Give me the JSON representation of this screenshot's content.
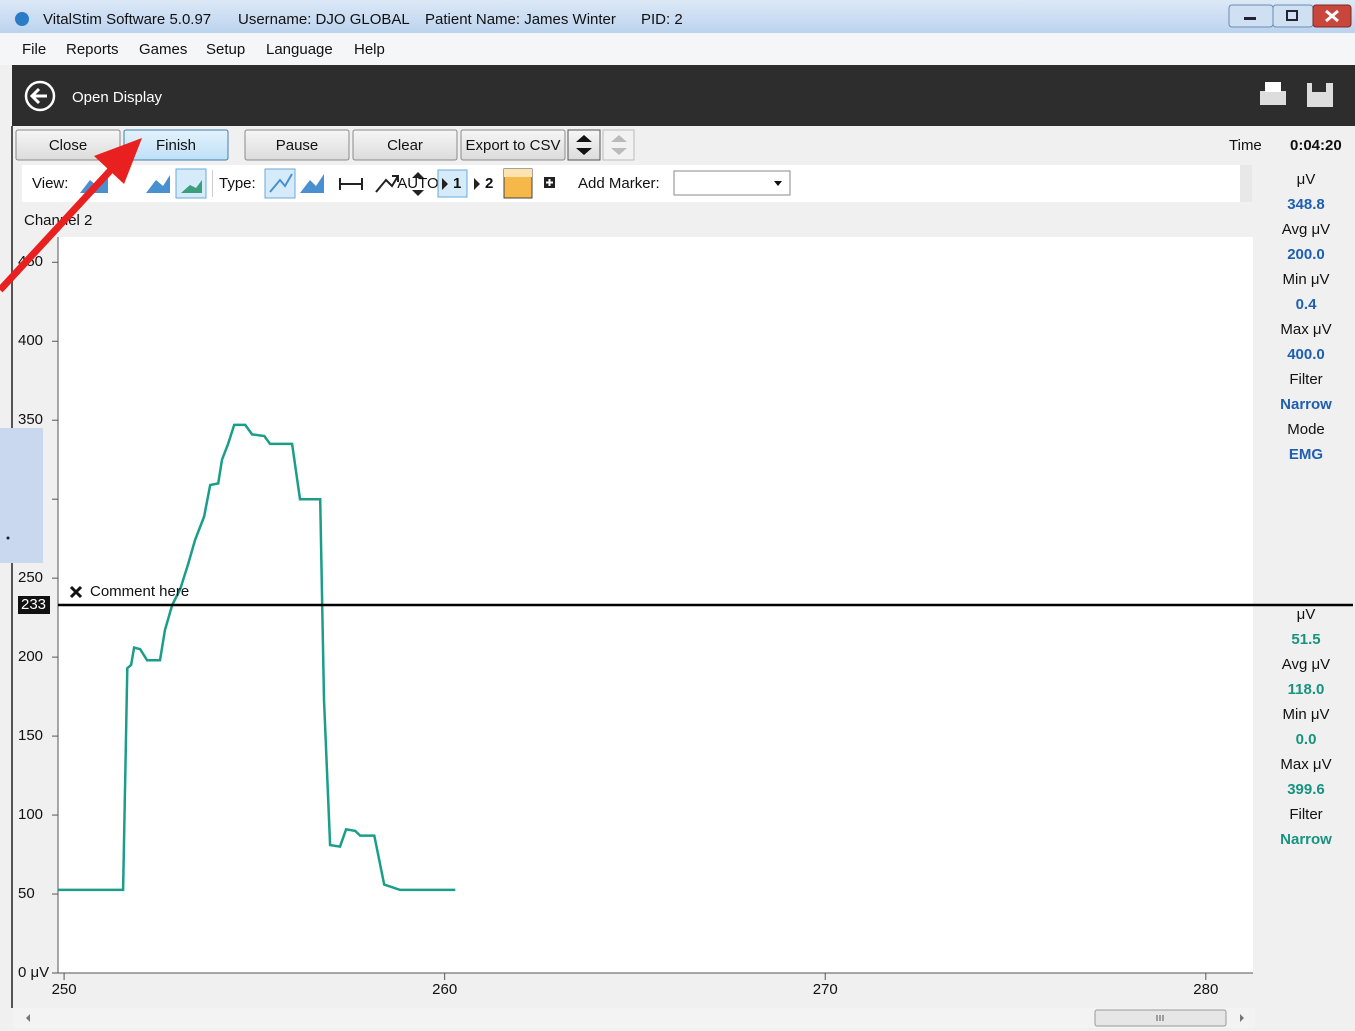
{
  "window": {
    "title": "VitalStim Software 5.0.97",
    "username": "Username: DJO GLOBAL",
    "patient": "Patient Name: James Winter",
    "pid": "PID: 2"
  },
  "menu": [
    "File",
    "Reports",
    "Games",
    "Setup",
    "Language",
    "Help"
  ],
  "header": {
    "title": "Open Display"
  },
  "buttons": [
    "Close",
    "Finish",
    "Pause",
    "Clear",
    "Export to CSV"
  ],
  "time": {
    "label": "Time",
    "value": "0:04:20"
  },
  "toolbar": {
    "view": "View:",
    "type": "Type:",
    "auto": "AUTO",
    "channel_1": "1",
    "channel_2": "2",
    "add_marker": "Add Marker:"
  },
  "stats": [
    {
      "color": "#1f5fb0",
      "items": [
        {
          "label": "μV",
          "value": "348.8"
        },
        {
          "label": "Avg μV",
          "value": "200.0"
        },
        {
          "label": "Min μV",
          "value": "0.4"
        },
        {
          "label": "Max μV",
          "value": "400.0"
        },
        {
          "label": "Filter",
          "value": "Narrow"
        },
        {
          "label": "Mode",
          "value": "EMG"
        }
      ]
    },
    {
      "color": "#17937f",
      "items": [
        {
          "label": "μV",
          "value": "51.5"
        },
        {
          "label": "Avg μV",
          "value": "118.0"
        },
        {
          "label": "Min μV",
          "value": "0.0"
        },
        {
          "label": "Max μV",
          "value": "399.6"
        },
        {
          "label": "Filter",
          "value": "Narrow"
        }
      ]
    }
  ],
  "chart_data": {
    "type": "line",
    "title": "Channel 2",
    "x": [
      249.84,
      251.55,
      251.66,
      251.76,
      251.84,
      252.0,
      252.18,
      252.52,
      252.65,
      252.84,
      253.05,
      253.26,
      253.44,
      253.68,
      253.84,
      254.05,
      254.15,
      254.31,
      254.47,
      254.76,
      254.94,
      255.26,
      255.41,
      255.99,
      256.2,
      256.73,
      256.83,
      256.99,
      257.25,
      257.41,
      257.65,
      257.78,
      258.15,
      258.41,
      258.83,
      260.28
    ],
    "values": [
      52.6,
      52.6,
      193,
      195,
      206,
      205,
      198,
      198,
      217,
      233,
      243,
      259,
      274,
      289,
      309,
      310,
      325,
      335,
      347,
      347,
      341,
      340,
      335,
      335,
      300,
      300,
      173,
      81,
      80,
      91,
      90,
      87,
      87,
      56,
      52.6,
      52.6
    ],
    "color": "#1a9e8a",
    "xlim": [
      249.84,
      281.24
    ],
    "ylim": [
      0,
      466
    ],
    "xticks": [
      250,
      260,
      270,
      280
    ],
    "yticks": [
      {
        "value": 0,
        "label": "0 μV"
      },
      50,
      100,
      150,
      200,
      250,
      300,
      350,
      400,
      450
    ],
    "marker": 233,
    "annotation": "Comment here"
  }
}
